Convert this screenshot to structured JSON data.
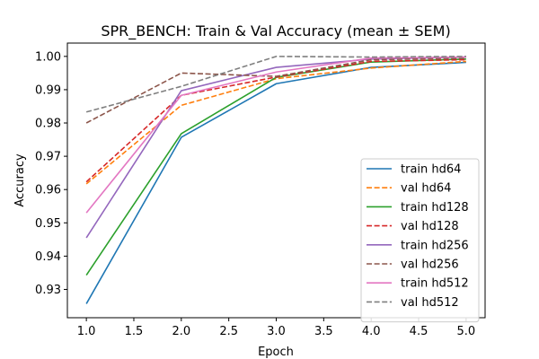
{
  "chart_data": {
    "type": "line",
    "title": "SPR_BENCH: Train & Val Accuracy (mean ± SEM)",
    "xlabel": "Epoch",
    "ylabel": "Accuracy",
    "xlim": [
      0.8,
      5.2
    ],
    "ylim": [
      0.9215,
      1.004
    ],
    "x_ticks": [
      "1.0",
      "1.5",
      "2.0",
      "2.5",
      "3.0",
      "3.5",
      "4.0",
      "4.5",
      "5.0"
    ],
    "y_ticks": [
      "0.93",
      "0.94",
      "0.95",
      "0.96",
      "0.97",
      "0.98",
      "0.99",
      "1.00"
    ],
    "grid": false,
    "legend_position": "lower-right",
    "x": [
      1,
      2,
      3,
      4,
      5
    ],
    "series": [
      {
        "name": "train hd64",
        "color": "#1f77b4",
        "dashed": false,
        "values": [
          0.9257,
          0.9757,
          0.9918,
          0.9967,
          0.9982
        ]
      },
      {
        "name": "val hd64",
        "color": "#ff7f0e",
        "dashed": true,
        "values": [
          0.9617,
          0.9853,
          0.9933,
          0.9965,
          0.9985
        ]
      },
      {
        "name": "train hd128",
        "color": "#2ca02c",
        "dashed": false,
        "values": [
          0.9343,
          0.9768,
          0.9937,
          0.9983,
          0.9992
        ]
      },
      {
        "name": "val hd128",
        "color": "#d62728",
        "dashed": true,
        "values": [
          0.9623,
          0.9883,
          0.9938,
          0.9985,
          0.999
        ]
      },
      {
        "name": "train hd256",
        "color": "#9467bd",
        "dashed": false,
        "values": [
          0.9455,
          0.9897,
          0.9967,
          0.9992,
          0.9998
        ]
      },
      {
        "name": "val hd256",
        "color": "#8c564b",
        "dashed": true,
        "values": [
          0.98,
          0.995,
          0.994,
          0.999,
          0.9995
        ]
      },
      {
        "name": "train hd512",
        "color": "#e377c2",
        "dashed": false,
        "values": [
          0.953,
          0.9883,
          0.9953,
          0.9995,
          0.9998
        ]
      },
      {
        "name": "val hd512",
        "color": "#7f7f7f",
        "dashed": true,
        "values": [
          0.9833,
          0.991,
          1.0,
          0.9998,
          1.0
        ]
      }
    ]
  }
}
